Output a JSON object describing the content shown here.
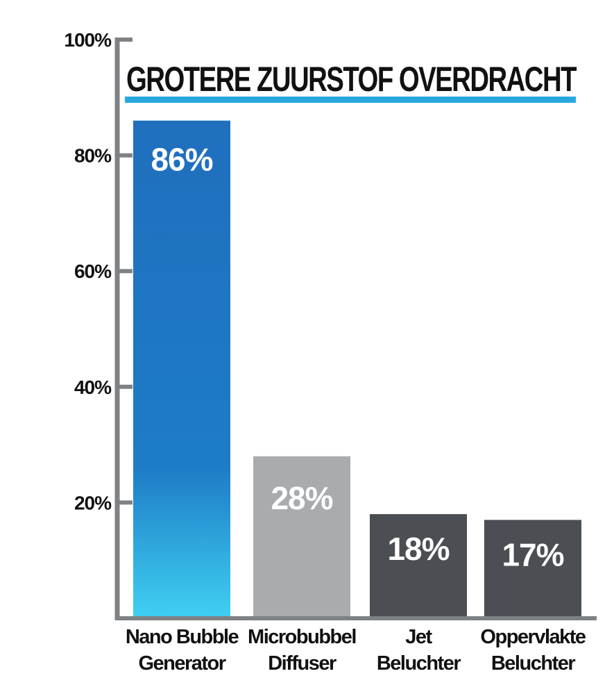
{
  "chart_data": {
    "type": "bar",
    "title": "GROTERE ZUURSTOF OVERDRACHT",
    "categories": [
      [
        "Nano Bubble",
        "Generator"
      ],
      [
        "Microbubbel",
        "Diffuser"
      ],
      [
        "Jet",
        "Beluchter"
      ],
      [
        "Oppervlakte",
        "Beluchter"
      ]
    ],
    "values": [
      86,
      28,
      18,
      17
    ],
    "data_labels": [
      "86%",
      "28%",
      "18%",
      "17%"
    ],
    "ylim": [
      0,
      100
    ],
    "yticks": [
      20,
      40,
      60,
      80,
      100
    ],
    "ytick_labels": [
      "20%",
      "40%",
      "60%",
      "80%",
      "100%"
    ],
    "grid": false,
    "legend": "none"
  },
  "colors": {
    "axis": "#7f8285",
    "title_underline": "#29a8e0",
    "bar_1_top": "#1f6fbd",
    "bar_1_mid": "#1e7cc6",
    "bar_1_bottom": "#3fd0f2",
    "bar_2": "#a9acaf",
    "bar_3": "#4b4e53",
    "bar_4": "#4b4e53"
  }
}
